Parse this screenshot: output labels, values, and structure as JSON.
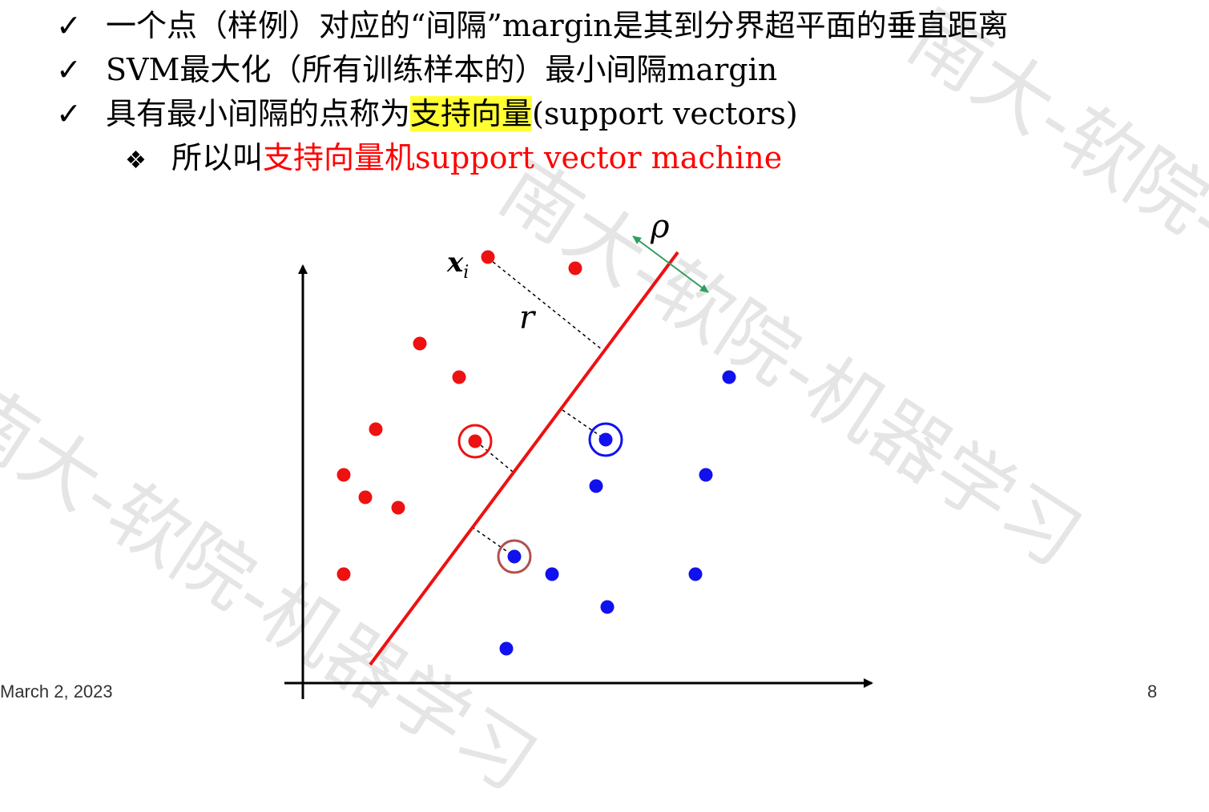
{
  "slide": {
    "bullets": [
      {
        "mark": "✓",
        "text": "一个点（样例）对应的“间隔”margin是其到分界超平面的垂直距离"
      },
      {
        "mark": "✓",
        "text": "SVM最大化（所有训练样本的）最小间隔margin"
      },
      {
        "mark": "✓",
        "pre": "具有最小间隔的点称为",
        "highlight": "支持向量",
        "post": "(support vectors)"
      },
      {
        "mark": "❖",
        "pre": "所以叫",
        "red": "支持向量机support vector machine"
      }
    ],
    "watermark": "南大-软院-机器学习",
    "footer": {
      "date": "March 2, 2023",
      "page": "8"
    }
  },
  "diagram": {
    "labels": {
      "xi_base": "x",
      "xi_sub": "i",
      "r": "r",
      "rho": "ρ"
    },
    "colors": {
      "class_a": "#ee1111",
      "class_b": "#1111ee",
      "boundary": "#ee1111",
      "margin_arrow": "#2e9e5e",
      "sv_ring_b2": "#b05050"
    }
  }
}
